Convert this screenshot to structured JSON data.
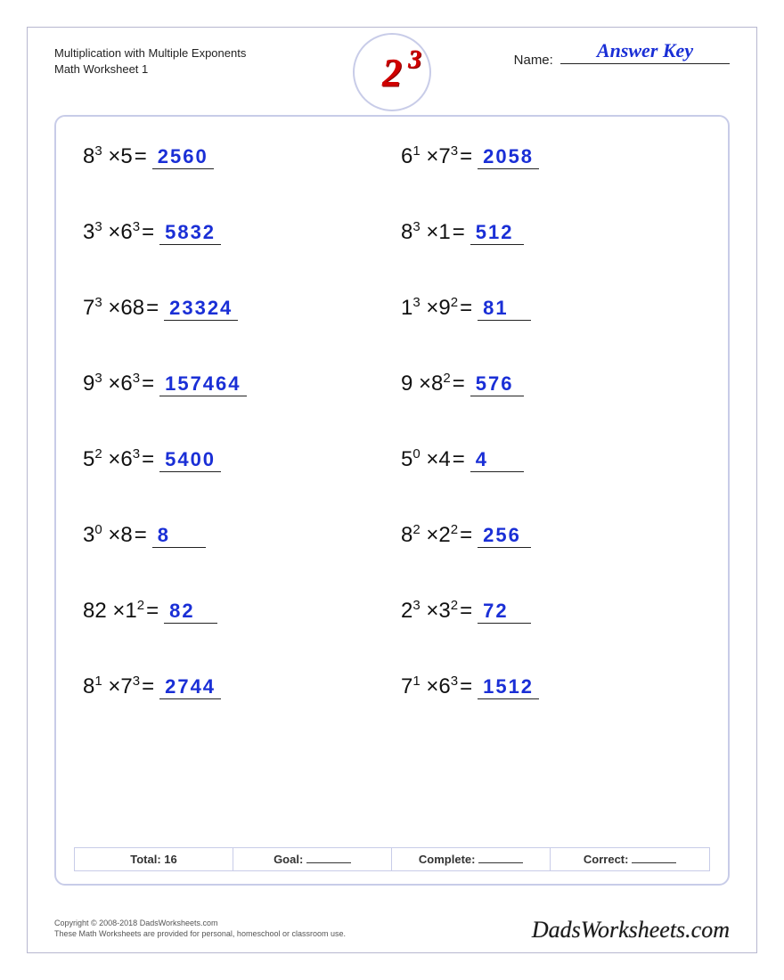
{
  "colors": {
    "page_border": "#b8b8d0",
    "box_border": "#c8cce8",
    "answer_text": "#1a2fd6",
    "logo_red": "#d00000",
    "text": "#111111",
    "background": "#ffffff"
  },
  "typography": {
    "body_font": "Arial",
    "answer_font": "sans-serif",
    "problem_fontsize_pt": 18,
    "answer_fontsize_pt": 17,
    "title_fontsize_pt": 10,
    "name_value_fontsize_pt": 17,
    "brand_fontsize_pt": 20
  },
  "header": {
    "title_line1": "Multiplication with Multiple Exponents",
    "title_line2": "Math Worksheet 1",
    "name_label": "Name:",
    "name_value": "Answer Key",
    "logo_base": "2",
    "logo_exp": "3"
  },
  "problems": [
    {
      "b1": "8",
      "e1": "3",
      "op": "×",
      "b2": "5",
      "e2": "",
      "answer": "2560"
    },
    {
      "b1": "6",
      "e1": "1",
      "op": "×",
      "b2": "7",
      "e2": "3",
      "answer": "2058"
    },
    {
      "b1": "3",
      "e1": "3",
      "op": "×",
      "b2": "6",
      "e2": "3",
      "answer": "5832"
    },
    {
      "b1": "8",
      "e1": "3",
      "op": "×",
      "b2": "1",
      "e2": "",
      "answer": "512"
    },
    {
      "b1": "7",
      "e1": "3",
      "op": "×",
      "b2": "68",
      "e2": "",
      "answer": "23324"
    },
    {
      "b1": "1",
      "e1": "3",
      "op": "×",
      "b2": "9",
      "e2": "2",
      "answer": "81"
    },
    {
      "b1": "9",
      "e1": "3",
      "op": "×",
      "b2": "6",
      "e2": "3",
      "answer": "157464"
    },
    {
      "b1": "9",
      "e1": "",
      "op": "×",
      "b2": "8",
      "e2": "2",
      "answer": "576"
    },
    {
      "b1": "5",
      "e1": "2",
      "op": "×",
      "b2": "6",
      "e2": "3",
      "answer": "5400"
    },
    {
      "b1": "5",
      "e1": "0",
      "op": "×",
      "b2": "4",
      "e2": "",
      "answer": "4"
    },
    {
      "b1": "3",
      "e1": "0",
      "op": "×",
      "b2": "8",
      "e2": "",
      "answer": "8"
    },
    {
      "b1": "8",
      "e1": "2",
      "op": "×",
      "b2": "2",
      "e2": "2",
      "answer": "256"
    },
    {
      "b1": "82",
      "e1": "",
      "op": "×",
      "b2": "1",
      "e2": "2",
      "answer": "82"
    },
    {
      "b1": "2",
      "e1": "3",
      "op": "×",
      "b2": "3",
      "e2": "2",
      "answer": "72"
    },
    {
      "b1": "8",
      "e1": "1",
      "op": "×",
      "b2": "7",
      "e2": "3",
      "answer": "2744"
    },
    {
      "b1": "7",
      "e1": "1",
      "op": "×",
      "b2": "6",
      "e2": "3",
      "answer": "1512"
    }
  ],
  "footer": {
    "total_label": "Total:",
    "total_value": "16",
    "goal_label": "Goal:",
    "complete_label": "Complete:",
    "correct_label": "Correct:"
  },
  "legal": {
    "line1": "Copyright © 2008-2018 DadsWorksheets.com",
    "line2": "These Math Worksheets are provided for personal, homeschool or classroom use."
  },
  "brand": "DadsWorksheets.com"
}
